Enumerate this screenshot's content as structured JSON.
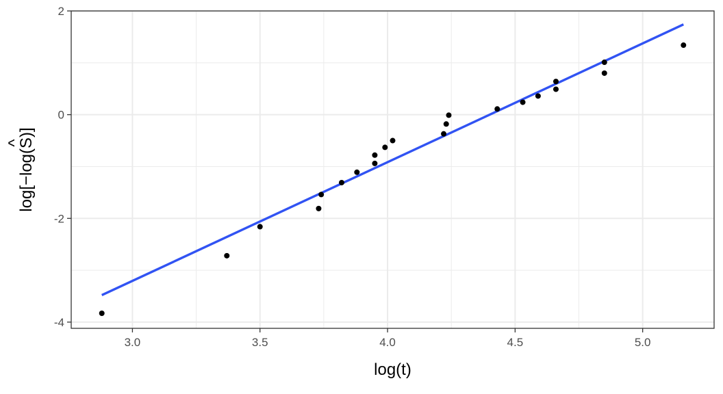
{
  "chart_data": {
    "type": "scatter",
    "xlabel": "log(t)",
    "ylabel_parts": {
      "prefix": "log[−log(",
      "hat": "^",
      "symbol": "S",
      "suffix": ")]"
    },
    "xlim": [
      2.76,
      5.28
    ],
    "ylim": [
      -4.12,
      2.0
    ],
    "x_ticks": [
      {
        "value": 3.0,
        "label": "3.0"
      },
      {
        "value": 3.5,
        "label": "3.5"
      },
      {
        "value": 4.0,
        "label": "4.0"
      },
      {
        "value": 4.5,
        "label": "4.5"
      },
      {
        "value": 5.0,
        "label": "5.0"
      }
    ],
    "y_ticks": [
      {
        "value": -4,
        "label": "-4"
      },
      {
        "value": -2,
        "label": "-2"
      },
      {
        "value": 0,
        "label": "0"
      },
      {
        "value": 2,
        "label": "2"
      }
    ],
    "grid": true,
    "points": {
      "x": [
        2.88,
        3.37,
        3.5,
        3.73,
        3.74,
        3.82,
        3.88,
        3.95,
        3.95,
        3.99,
        4.02,
        4.22,
        4.23,
        4.24,
        4.43,
        4.53,
        4.59,
        4.66,
        4.66,
        4.85,
        4.85,
        5.16
      ],
      "y": [
        -3.83,
        -2.72,
        -2.16,
        -1.81,
        -1.54,
        -1.31,
        -1.11,
        -0.94,
        -0.78,
        -0.63,
        -0.5,
        -0.37,
        -0.18,
        -0.01,
        0.11,
        0.24,
        0.36,
        0.49,
        0.64,
        0.8,
        1.01,
        1.34
      ]
    },
    "fit_line": {
      "x": [
        2.88,
        5.16
      ],
      "y": [
        -3.48,
        1.74
      ]
    },
    "colors": {
      "points": "#000000",
      "fit_line": "#3153f3",
      "grid": "#ebebeb",
      "border": "#333333"
    }
  }
}
